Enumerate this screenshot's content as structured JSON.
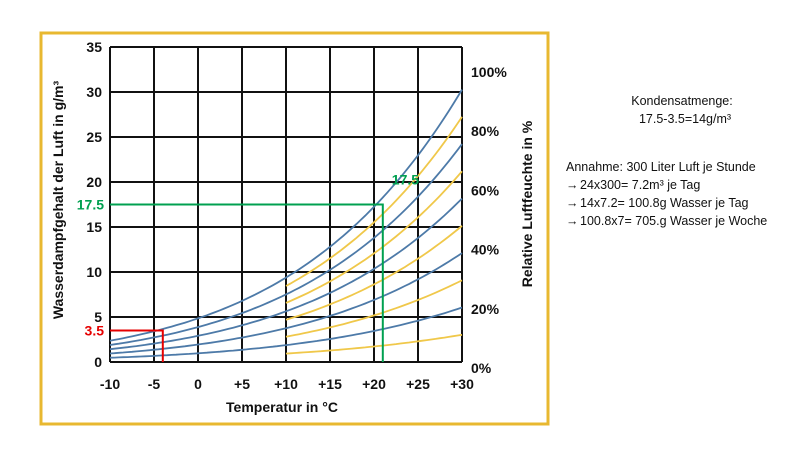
{
  "chart_data": {
    "type": "line",
    "xlabel": "Temperatur in °C",
    "ylabel": "Wasserdampfgehalt der Luft in g/m³",
    "y2label": "Relative Luftfeuchte in %",
    "xlim": [
      -10,
      30
    ],
    "ylim": [
      0,
      35
    ],
    "x_ticks": [
      "-10",
      "-5",
      "0",
      "+5",
      "+10",
      "+15",
      "+20",
      "+25",
      "+30"
    ],
    "y_ticks": [
      "0",
      "5",
      "10",
      "15",
      "20",
      "25",
      "30",
      "35"
    ],
    "y2_ticks": [
      "0%",
      "20%",
      "40%",
      "60%",
      "80%",
      "100%"
    ],
    "grid": true,
    "curves_rh_percent": [
      10,
      20,
      30,
      40,
      50,
      60,
      70,
      80,
      90,
      100
    ],
    "blue_rh_percent": [
      20,
      40,
      60,
      80,
      100
    ],
    "annotations": {
      "low": {
        "label": "3.5",
        "x": -4,
        "y": 3.5,
        "color": "#e60000"
      },
      "high_left": {
        "label": "17.5",
        "x": 21,
        "y": 17.5,
        "color": "#00a050"
      },
      "high_right": {
        "label": "17.5",
        "x": 21,
        "y": 17.5,
        "color": "#00a050"
      }
    }
  },
  "notes": {
    "heading": "Kondensatmenge:",
    "calc": "17.5-3.5=14g/m³",
    "assumption": "Annahme: 300  Liter Luft je Stunde",
    "items": [
      "24x300= 7.2m³ je Tag",
      "14x7.2= 100.8g  Wasser je Tag",
      "100.8x7= 705.g  Wasser je Woche"
    ]
  },
  "colors": {
    "frame": "#e8b830",
    "blue_curve": "#4d7aa8",
    "yellow_curve": "#f0c84a",
    "grid": "#111111",
    "red": "#e60000",
    "green": "#00a050"
  }
}
